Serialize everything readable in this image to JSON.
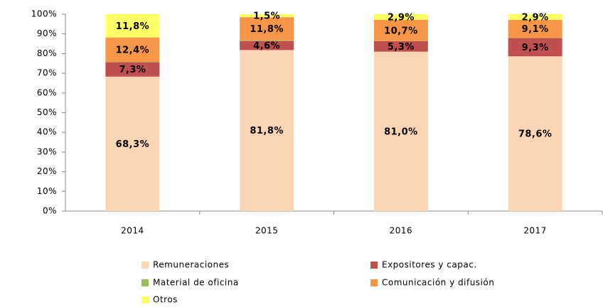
{
  "chart_data": {
    "type": "stacked_bar",
    "categories": [
      "2014",
      "2015",
      "2016",
      "2017"
    ],
    "series": [
      {
        "name": "Remuneraciones",
        "color": "#fcd5b5",
        "values": [
          68.3,
          81.8,
          81.0,
          78.6
        ],
        "value_labels": [
          "68,3%",
          "81,8%",
          "81,0%",
          "78,6%"
        ]
      },
      {
        "name": "Expositores y capac.",
        "color": "#c0504d",
        "values": [
          7.3,
          4.6,
          5.3,
          9.3
        ],
        "value_labels": [
          "7,3%",
          "4,6%",
          "5,3%",
          "9,3%"
        ]
      },
      {
        "name": "Material de oficina",
        "color": "#9bbb59",
        "values": [
          0.2,
          0.3,
          0.1,
          0.1
        ]
      },
      {
        "name": "Comunicación y difusión",
        "color": "#f79646",
        "values": [
          12.4,
          11.8,
          10.7,
          9.1
        ],
        "value_labels": [
          "12,4%",
          "11,8%",
          "10,7%",
          "9,1%"
        ]
      },
      {
        "name": "Otros",
        "color": "#ffff66",
        "values": [
          11.8,
          1.5,
          2.9,
          2.9
        ],
        "value_labels": [
          "11,8%",
          "1,5%",
          "2,9%",
          "2,9%"
        ]
      }
    ],
    "ylim": [
      0,
      100
    ],
    "yticks": [
      {
        "value": 0,
        "label": "0%"
      },
      {
        "value": 10,
        "label": "10%"
      },
      {
        "value": 20,
        "label": "20%"
      },
      {
        "value": 30,
        "label": "30%"
      },
      {
        "value": 40,
        "label": "40%"
      },
      {
        "value": 50,
        "label": "50%"
      },
      {
        "value": 60,
        "label": "60%"
      },
      {
        "value": 70,
        "label": "70%"
      },
      {
        "value": 80,
        "label": "80%"
      },
      {
        "value": 90,
        "label": "90%"
      },
      {
        "value": 100,
        "label": "100%"
      }
    ],
    "legend": "bottom"
  }
}
